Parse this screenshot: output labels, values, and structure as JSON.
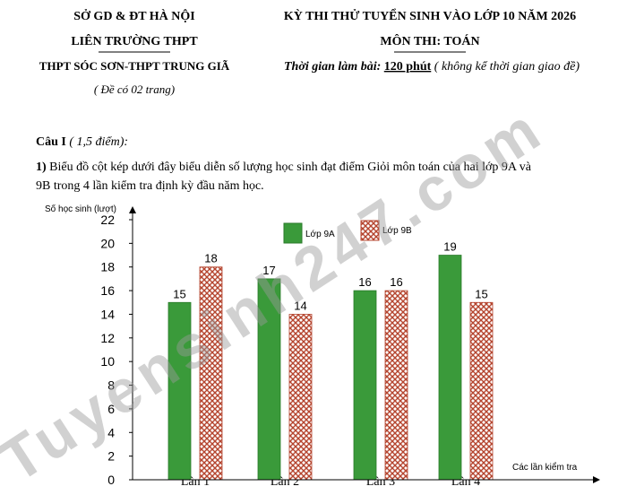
{
  "header": {
    "left": [
      "SỞ GD & ĐT HÀ NỘI",
      "LIÊN TRƯỜNG THPT",
      "THPT SÓC SƠN-THPT TRUNG GIÃ",
      "( Đề có 02 trang)"
    ],
    "right": {
      "exam": "KỲ THI THỬ TUYỂN SINH VÀO LỚP 10 NĂM 2026",
      "subject": "MÔN THI: TOÁN",
      "time_label": "Thời gian làm bài:",
      "time_value": "120 phút",
      "time_note": "( không kể thời gian giao đề)"
    }
  },
  "question": {
    "title": "Câu I",
    "points": "( 1,5 điểm):",
    "part": "1)",
    "lines": [
      "Biểu đồ cột kép dưới đây biểu diễn số lượng học sinh đạt điểm Giỏi môn toán của hai lớp 9A và",
      "9B trong 4 lần kiểm tra định kỳ đầu năm học."
    ]
  },
  "watermark": "Tuyensinh247.com",
  "chart_data": {
    "type": "bar",
    "y_label": "Số học sinh (lượt)",
    "x_label": "Các lần kiểm tra",
    "categories": [
      "Lần 1",
      "Lần 2",
      "Lần 3",
      "Lần 4"
    ],
    "series": [
      {
        "name": "Lớp 9A",
        "color": "#3a9a3a",
        "values": [
          15,
          17,
          16,
          19
        ]
      },
      {
        "name": "Lớp 9B",
        "color": "#b5452f",
        "pattern": "crosshatch",
        "values": [
          18,
          14,
          16,
          15
        ]
      }
    ],
    "ylim": [
      0,
      22
    ],
    "yticks": [
      0,
      2,
      4,
      6,
      8,
      10,
      12,
      14,
      16,
      18,
      20,
      22
    ],
    "legend": "top"
  }
}
